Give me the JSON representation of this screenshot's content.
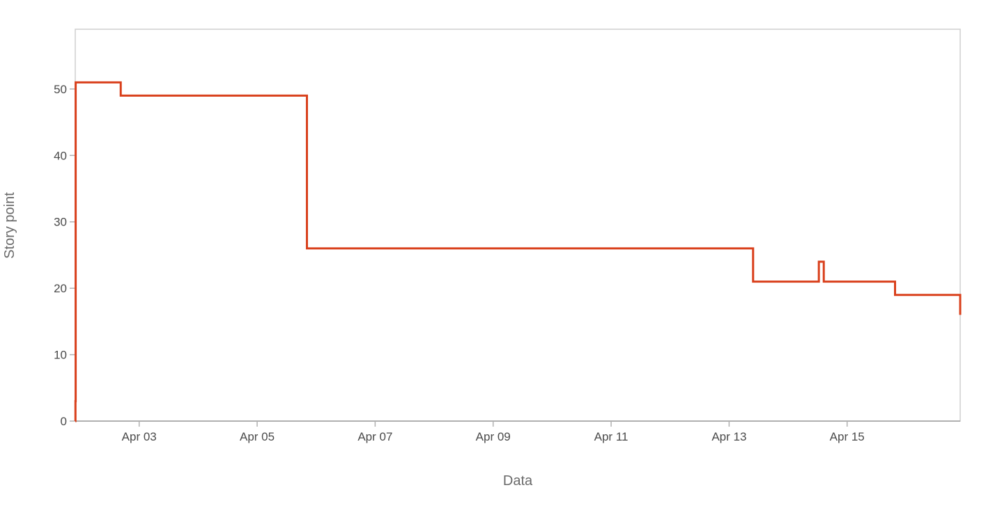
{
  "chart_data": {
    "type": "line",
    "step": true,
    "title": "",
    "xlabel": "Data",
    "ylabel": "Story point",
    "x_is_date": true,
    "xlim": [
      "2024-04-01T22:00",
      "2024-04-16T22:00"
    ],
    "ylim": [
      0,
      59
    ],
    "y_ticks": [
      0,
      10,
      20,
      30,
      40,
      50
    ],
    "x_ticks": [
      {
        "date": "2024-04-03",
        "label": "Apr 03"
      },
      {
        "date": "2024-04-05",
        "label": "Apr 05"
      },
      {
        "date": "2024-04-07",
        "label": "Apr 07"
      },
      {
        "date": "2024-04-09",
        "label": "Apr 09"
      },
      {
        "date": "2024-04-11",
        "label": "Apr 11"
      },
      {
        "date": "2024-04-13",
        "label": "Apr 13"
      },
      {
        "date": "2024-04-15",
        "label": "Apr 15"
      }
    ],
    "grid": false,
    "legend": "none",
    "series": [
      {
        "color": "#d9401c",
        "points": [
          {
            "x": "2024-04-01T22:00",
            "y": 0
          },
          {
            "x": "2024-04-01T22:05",
            "y": 3
          },
          {
            "x": "2024-04-01T22:10",
            "y": 51
          },
          {
            "x": "2024-04-02T16:30",
            "y": 49
          },
          {
            "x": "2024-04-05T20:15",
            "y": 26
          },
          {
            "x": "2024-04-13T09:45",
            "y": 21
          },
          {
            "x": "2024-04-14T12:30",
            "y": 24
          },
          {
            "x": "2024-04-14T14:30",
            "y": 21
          },
          {
            "x": "2024-04-15T19:30",
            "y": 19
          },
          {
            "x": "2024-04-16T22:00",
            "y": 16
          }
        ]
      }
    ]
  }
}
